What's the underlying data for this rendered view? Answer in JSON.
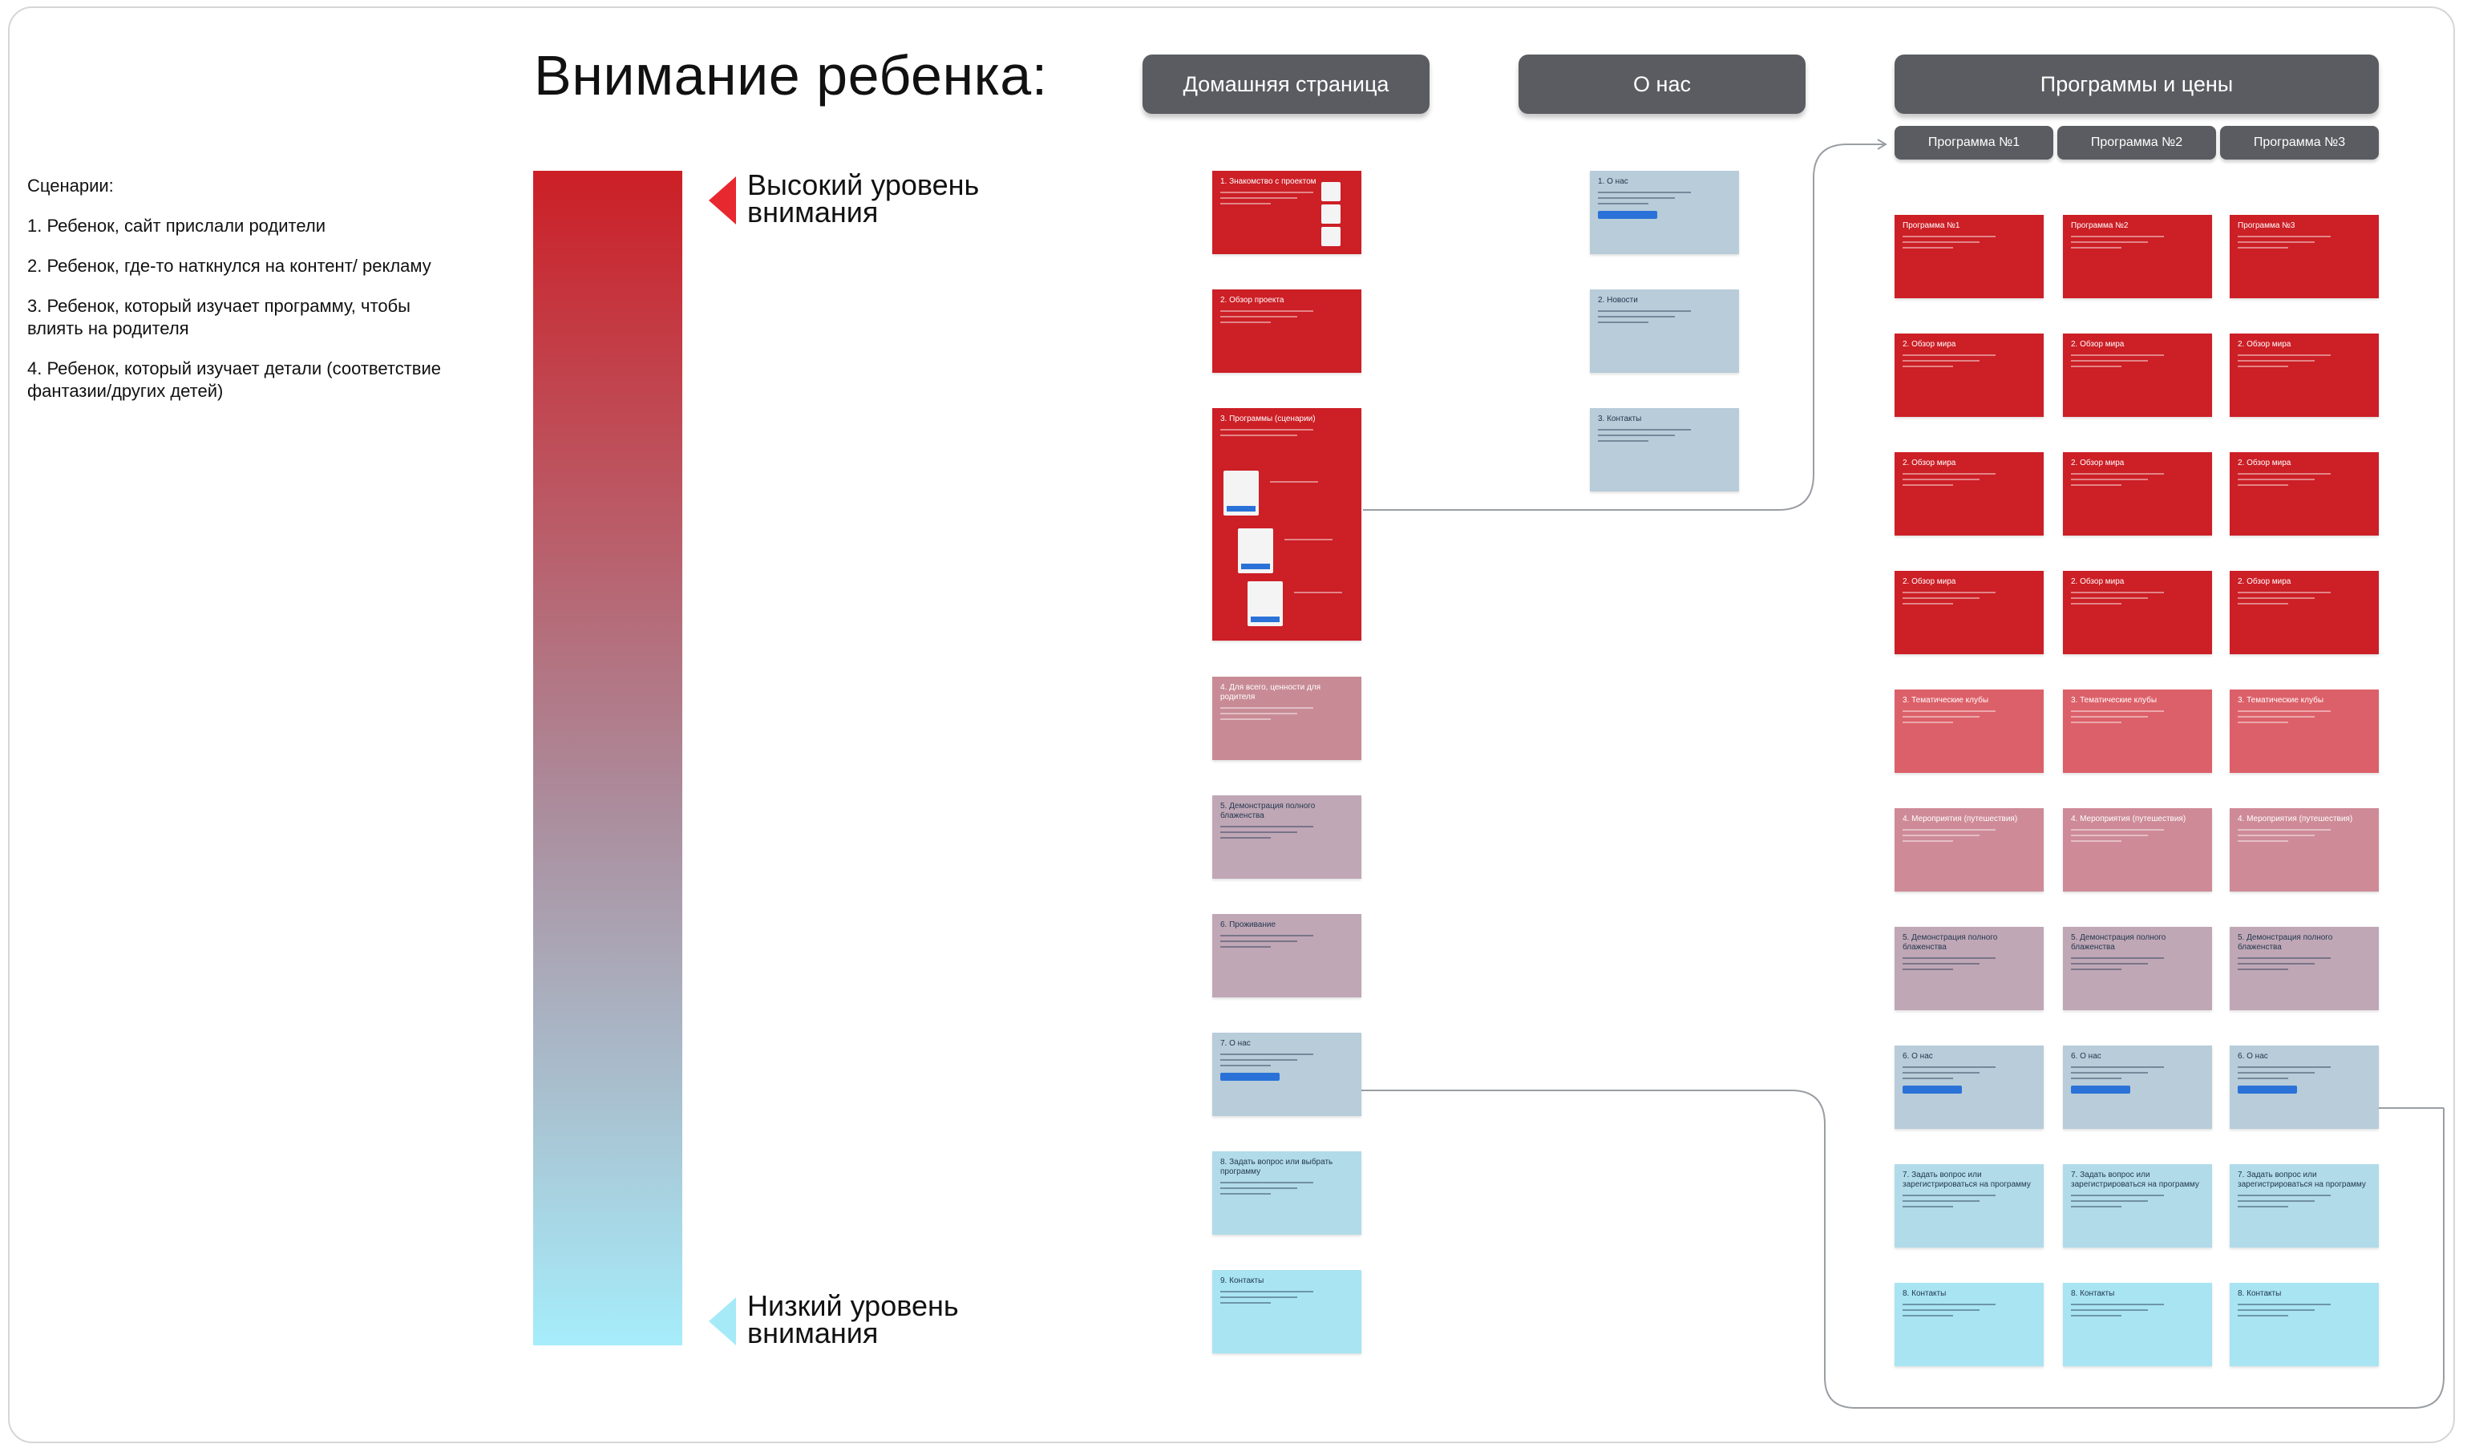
{
  "title": "Внимание ребенка:",
  "scenarios": {
    "heading": "Сценарии:",
    "items": [
      "1. Ребенок, сайт прислали родители",
      "2. Ребенок, где-то наткнулся на контент/ рекламу",
      "3. Ребенок, который изучает программу, чтобы влиять на родителя",
      "4. Ребенок, который изучает детали (соответствие фантазии/других детей)"
    ]
  },
  "scale": {
    "high_label": "Высокий уровень\nвнимания",
    "low_label": "Низкий уровень\nвнимания",
    "colors": {
      "high": "#cc1f26",
      "mid": "#ab8e9e",
      "low": "#a6edfb"
    }
  },
  "columns": {
    "home": "Домашняя страница",
    "about": "О нас",
    "programs": "Программы и цены"
  },
  "program_tabs": [
    "Программа №1",
    "Программа №2",
    "Программа №3"
  ],
  "home_cards": [
    {
      "title": "1. Знакомство с проектом",
      "color": "#cc1f26"
    },
    {
      "title": "2. Обзор проекта",
      "color": "#cc1f26"
    },
    {
      "title": "3. Программы (сценарии)",
      "color": "#cc1f26"
    },
    {
      "title": "4. Для всего, ценности для родителя",
      "color": "#c88b95"
    },
    {
      "title": "5. Демонстрация полного блаженства",
      "color": "#c0a7b6"
    },
    {
      "title": "6. Проживание",
      "color": "#c0a7b6"
    },
    {
      "title": "7. О нас",
      "color": "#b8ccd9"
    },
    {
      "title": "8. Задать вопрос или выбрать программу",
      "color": "#b1dbe9"
    },
    {
      "title": "9. Контакты",
      "color": "#a9e4f3"
    }
  ],
  "about_cards": [
    {
      "title": "1. О нас",
      "color": "#b8ccd9"
    },
    {
      "title": "2. Новости",
      "color": "#b8ccd9"
    },
    {
      "title": "3. Контакты",
      "color": "#b8ccd9"
    }
  ],
  "program_rows": [
    {
      "titles": [
        "Программа №1",
        "Программа №2",
        "Программа №3"
      ],
      "color": "#cc1f26"
    },
    {
      "titles": [
        "2. Обзор мира",
        "2. Обзор мира",
        "2. Обзор мира"
      ],
      "color": "#cc1f26"
    },
    {
      "titles": [
        "2. Обзор мира",
        "2. Обзор мира",
        "2. Обзор мира"
      ],
      "color": "#cc1f26"
    },
    {
      "titles": [
        "2. Обзор мира",
        "2. Обзор мира",
        "2. Обзор мира"
      ],
      "color": "#cc1f26"
    },
    {
      "titles": [
        "3. Тематические клубы",
        "3. Тематические клубы",
        "3. Тематические клубы"
      ],
      "color": "#dc6069"
    },
    {
      "titles": [
        "4. Мероприятия (путешествия)",
        "4. Мероприятия (путешествия)",
        "4. Мероприятия (путешествия)"
      ],
      "color": "#ce8b97"
    },
    {
      "titles": [
        "5. Демонстрация полного блаженства",
        "5. Демонстрация полного блаженства",
        "5. Демонстрация полного блаженства"
      ],
      "color": "#c0a7b6"
    },
    {
      "titles": [
        "6. О нас",
        "6. О нас",
        "6. О нас"
      ],
      "color": "#b8ccd9"
    },
    {
      "titles": [
        "7. Задать вопрос или зарегистрироваться на программу",
        "7. Задать вопрос или зарегистрироваться на программу",
        "7. Задать вопрос или зарегистрироваться на программу"
      ],
      "color": "#b1dbe9"
    },
    {
      "titles": [
        "8. Контакты",
        "8. Контакты",
        "8. Контакты"
      ],
      "color": "#a9e4f3"
    }
  ]
}
